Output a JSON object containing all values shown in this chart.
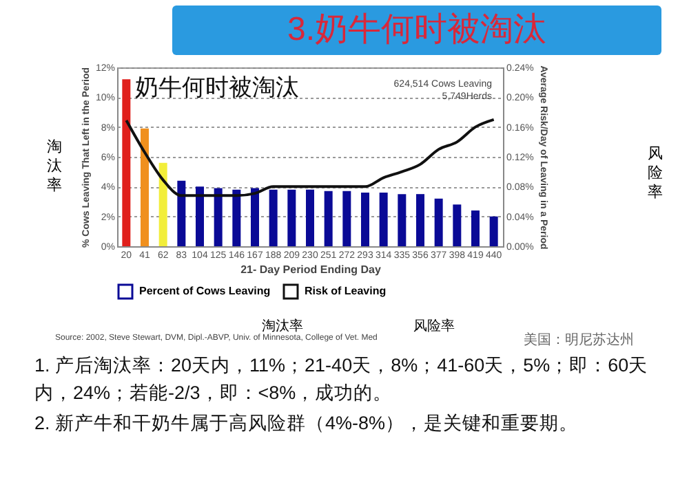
{
  "chart_data": {
    "type": "bar",
    "title": "3.奶牛何时被淘汰",
    "subtitle": "奶牛何时被淘汰",
    "xlabel": "21- Day Period Ending Day",
    "ylabel": "% Cows Leaving That Left in the Period",
    "y2label": "Average Risk/Day of Leaving in a Period",
    "categories": [
      "20",
      "41",
      "62",
      "83",
      "104",
      "125",
      "146",
      "167",
      "188",
      "209",
      "230",
      "251",
      "272",
      "293",
      "314",
      "335",
      "356",
      "377",
      "398",
      "419",
      "440"
    ],
    "series": [
      {
        "name": "Percent of Cows Leaving",
        "color": "#0a0a96",
        "colors": [
          "#e0201c",
          "#f0901e",
          "#f2ee3a",
          "#0a0a96",
          "#0a0a96",
          "#0a0a96",
          "#0a0a96",
          "#0a0a96",
          "#0a0a96",
          "#0a0a96",
          "#0a0a96",
          "#0a0a96",
          "#0a0a96",
          "#0a0a96",
          "#0a0a96",
          "#0a0a96",
          "#0a0a96",
          "#0a0a96",
          "#0a0a96",
          "#0a0a96",
          "#0a0a96"
        ],
        "values": [
          11.2,
          7.9,
          5.6,
          4.4,
          4.0,
          3.9,
          3.8,
          3.9,
          3.8,
          3.8,
          3.8,
          3.7,
          3.7,
          3.6,
          3.6,
          3.5,
          3.5,
          3.2,
          2.8,
          2.4,
          2.0
        ]
      },
      {
        "name": "Risk of Leaving",
        "type": "line",
        "axis": "y2",
        "color": "#111111",
        "values": [
          0.169,
          0.126,
          0.089,
          0.068,
          0.068,
          0.068,
          0.068,
          0.071,
          0.08,
          0.08,
          0.08,
          0.08,
          0.08,
          0.08,
          0.092,
          0.1,
          0.11,
          0.13,
          0.14,
          0.16,
          0.17
        ]
      }
    ],
    "ylim": [
      0,
      12
    ],
    "yticks": [
      {
        "value": 0,
        "label": "0%"
      },
      {
        "value": 2,
        "label": "2%"
      },
      {
        "value": 4,
        "label": "4%"
      },
      {
        "value": 6,
        "label": "6%"
      },
      {
        "value": 8,
        "label": "8%"
      },
      {
        "value": 10,
        "label": "10%"
      },
      {
        "value": 12,
        "label": "12%"
      }
    ],
    "y2lim": [
      0,
      0.24
    ],
    "y2ticks": [
      {
        "value": 0,
        "label": "0.00%"
      },
      {
        "value": 0.04,
        "label": "0.04%"
      },
      {
        "value": 0.08,
        "label": "0.08%"
      },
      {
        "value": 0.12,
        "label": "0.12%"
      },
      {
        "value": 0.16,
        "label": "0.16%"
      },
      {
        "value": 0.2,
        "label": "0.20%"
      },
      {
        "value": 0.24,
        "label": "0.24%"
      }
    ],
    "grid": "y",
    "legend": "bottom",
    "marker": "none",
    "annotations": [
      "624,514 Cows Leaving",
      "5,749Herds",
      "淘汰率",
      "风险率",
      "淘汰率",
      "风险率",
      "Source: 2002, Steve Stewart, DVM, Dipl.-ABVP, Univ. of Minnesota, College of Vet. Med",
      "美国：明尼苏达州",
      "1. 产后淘汰率：20天内，11%；21-40天，8%；41-60天，5%；即：60天内，24%；若能-2/3，即：<8%，成功的。",
      "2. 新产牛和干奶牛属于高风险群（4%-8%），是关键和重要期。"
    ]
  }
}
